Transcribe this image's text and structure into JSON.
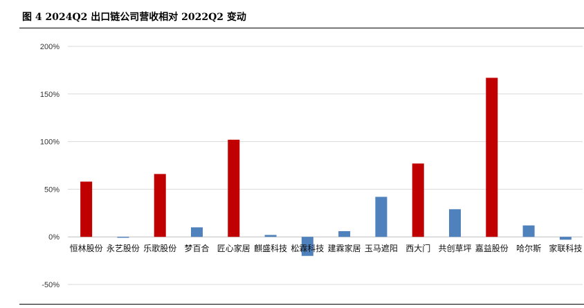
{
  "figure": {
    "title": "图 4 2024Q2 出口链公司营收相对 2022Q2 变动"
  },
  "colors": {
    "positive_highlight": "#C00000",
    "other": "#4F81BD",
    "grid": "#D9D9D9",
    "axis": "#BFBFBF"
  },
  "chart_data": {
    "type": "bar",
    "title": "",
    "xlabel": "",
    "ylabel": "",
    "ylim": [
      -50,
      200
    ],
    "yticks": [
      -50,
      0,
      50,
      100,
      150,
      200
    ],
    "ytick_labels": [
      "-50%",
      "0%",
      "50%",
      "100%",
      "150%",
      "200%"
    ],
    "grid": true,
    "legend": "none",
    "categories": [
      "恒林股份",
      "永艺股份",
      "乐歌股份",
      "梦百合",
      "匠心家居",
      "麒盛科技",
      "松霖科技",
      "建霖家居",
      "玉马遮阳",
      "西大门",
      "共创草坪",
      "嘉益股份",
      "哈尔斯",
      "家联科技"
    ],
    "values": [
      58,
      -1,
      66,
      10,
      102,
      2,
      -20,
      6,
      42,
      77,
      29,
      167,
      12,
      -3
    ],
    "bar_colors": [
      "#C00000",
      "#4F81BD",
      "#C00000",
      "#4F81BD",
      "#C00000",
      "#4F81BD",
      "#4F81BD",
      "#4F81BD",
      "#4F81BD",
      "#C00000",
      "#4F81BD",
      "#C00000",
      "#4F81BD",
      "#4F81BD"
    ]
  }
}
